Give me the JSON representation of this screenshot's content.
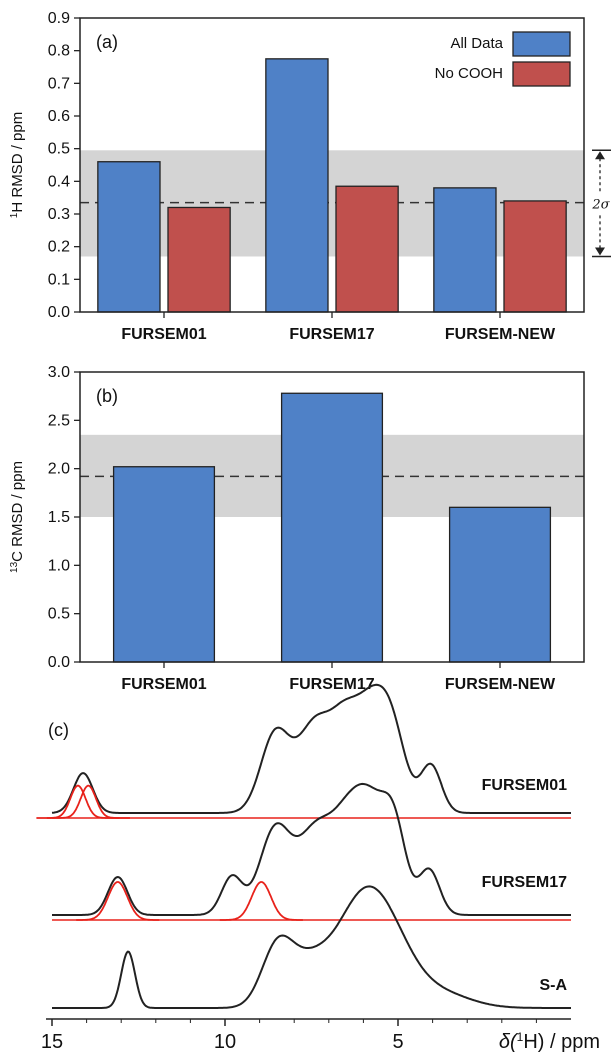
{
  "chart_data": [
    {
      "panel": "(a)",
      "type": "bar",
      "ylabel_sup": "1",
      "ylabel": "H RMSD / ppm",
      "categories": [
        "FURSEM01",
        "FURSEM17",
        "FURSEM-NEW"
      ],
      "series": [
        {
          "name": "All Data",
          "color": "#4f81c7",
          "values": [
            0.46,
            0.775,
            0.38
          ]
        },
        {
          "name": "No COOH",
          "color": "#c0504d",
          "values": [
            0.32,
            0.385,
            0.34
          ]
        }
      ],
      "ylim": [
        0,
        0.9
      ],
      "yticks": [
        "0.0",
        "0.1",
        "0.2",
        "0.3",
        "0.4",
        "0.5",
        "0.6",
        "0.7",
        "0.8",
        "0.9"
      ],
      "mean_line": 0.335,
      "band": [
        0.17,
        0.495
      ],
      "band_label": "2σ",
      "legend_position": "top-right"
    },
    {
      "panel": "(b)",
      "type": "bar",
      "ylabel_sup": "13",
      "ylabel": "C RMSD / ppm",
      "categories": [
        "FURSEM01",
        "FURSEM17",
        "FURSEM-NEW"
      ],
      "series": [
        {
          "color": "#4f81c7",
          "values": [
            2.02,
            2.78,
            1.6
          ]
        }
      ],
      "ylim": [
        0,
        3.0
      ],
      "yticks": [
        "0.0",
        "0.5",
        "1.0",
        "1.5",
        "2.0",
        "2.5",
        "3.0"
      ],
      "mean_line": 1.92,
      "band": [
        1.5,
        2.35
      ]
    },
    {
      "panel": "(c)",
      "type": "line",
      "xlabel_prefix": "δ(",
      "xlabel_sup": "1",
      "xlabel_suffix": "H) / ppm",
      "xlim": [
        15,
        0
      ],
      "xticks": [
        "15",
        "10",
        "5"
      ],
      "spectra": [
        {
          "name": "FURSEM01",
          "color": "#222222",
          "peaks": [
            [
              14.1,
              0.42,
              0.28
            ],
            [
              8.55,
              0.82,
              0.42
            ],
            [
              7.4,
              0.92,
              0.5
            ],
            [
              6.55,
              0.72,
              0.4
            ],
            [
              5.8,
              1.0,
              0.45
            ],
            [
              5.15,
              0.75,
              0.4
            ],
            [
              4.05,
              0.5,
              0.3
            ]
          ],
          "components": [
            [
              14.25,
              0.34,
              0.22
            ],
            [
              13.95,
              0.34,
              0.22
            ]
          ],
          "component_color": "#e8221b"
        },
        {
          "name": "FURSEM17",
          "color": "#222222",
          "peaks": [
            [
              13.1,
              0.38,
              0.28
            ],
            [
              9.8,
              0.38,
              0.3
            ],
            [
              8.55,
              0.85,
              0.45
            ],
            [
              7.4,
              0.8,
              0.5
            ],
            [
              6.5,
              0.75,
              0.45
            ],
            [
              5.8,
              0.95,
              0.45
            ],
            [
              5.1,
              0.8,
              0.35
            ],
            [
              4.1,
              0.45,
              0.3
            ]
          ],
          "components": [
            [
              13.1,
              0.38,
              0.28
            ],
            [
              8.95,
              0.38,
              0.28
            ]
          ],
          "component_color": "#e8221b"
        },
        {
          "name": "S-A",
          "color": "#222222",
          "peaks": [
            [
              12.8,
              0.6,
              0.2
            ],
            [
              8.5,
              0.6,
              0.45
            ],
            [
              7.6,
              0.42,
              0.6
            ],
            [
              6.1,
              1.0,
              0.75
            ],
            [
              5.2,
              0.5,
              0.7
            ],
            [
              3.9,
              0.17,
              0.9
            ]
          ]
        }
      ]
    }
  ]
}
